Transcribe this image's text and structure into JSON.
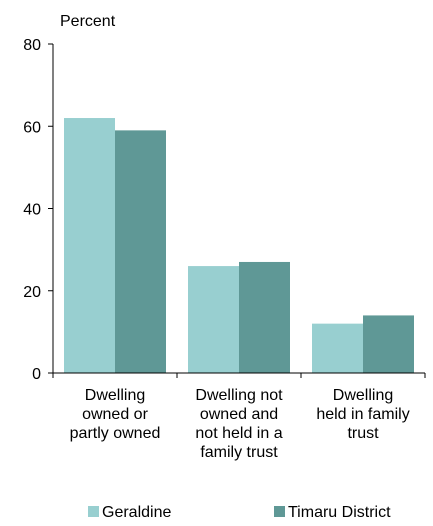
{
  "chart_data": {
    "type": "bar",
    "ylabel": "Percent",
    "xlabel": "",
    "ylim": [
      0,
      80
    ],
    "yticks": [
      "0",
      "20",
      "40",
      "60",
      "80"
    ],
    "categories": [
      [
        "Dwelling",
        "owned or",
        "partly owned"
      ],
      [
        "Dwelling not",
        "owned and",
        "not held in a",
        "family trust"
      ],
      [
        "Dwelling",
        "held in family",
        "trust"
      ]
    ],
    "series": [
      {
        "name": "Geraldine",
        "color": "#98cfd0",
        "values": [
          62,
          26,
          12
        ]
      },
      {
        "name": "Timaru District",
        "color": "#5f9896",
        "values": [
          59,
          27,
          14
        ]
      }
    ],
    "legend_position": "bottom",
    "grid": false
  }
}
